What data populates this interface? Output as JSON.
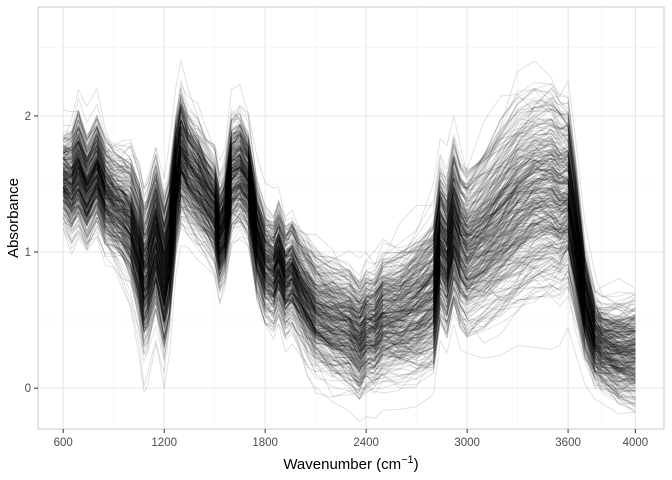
{
  "chart_data": {
    "type": "line",
    "title": "",
    "xlabel": "Wavenumber (cm",
    "xlabel_superscript": "−1",
    "xlabel_suffix": ")",
    "ylabel": "Absorbance",
    "xlim": [
      450,
      4170
    ],
    "ylim": [
      -0.3,
      2.8
    ],
    "x_ticks": [
      600,
      1200,
      1800,
      2400,
      3000,
      3600,
      4000
    ],
    "x_tick_labels": [
      "600",
      "1200",
      "1800",
      "2400",
      "3000",
      "3600",
      "4000"
    ],
    "x_minor_ticks": [
      900,
      1500,
      2100,
      2700,
      3300,
      3800
    ],
    "y_ticks": [
      0,
      1,
      2
    ],
    "y_tick_labels": [
      "0",
      "1",
      "2"
    ],
    "y_minor_ticks": [
      0.5,
      1.5,
      2.5
    ],
    "grid": true,
    "legend": "none",
    "line_color": "#000000",
    "line_opacity": 0.12,
    "n_series": 400,
    "x": [
      600,
      650,
      690,
      740,
      800,
      850,
      900,
      950,
      1000,
      1050,
      1080,
      1100,
      1150,
      1200,
      1230,
      1270,
      1300,
      1340,
      1400,
      1450,
      1500,
      1530,
      1560,
      1600,
      1650,
      1700,
      1750,
      1800,
      1850,
      1880,
      1920,
      1960,
      2000,
      2050,
      2100,
      2200,
      2300,
      2360,
      2400,
      2450,
      2500,
      2600,
      2700,
      2800,
      2840,
      2880,
      2920,
      2960,
      3000,
      3100,
      3200,
      3300,
      3400,
      3500,
      3550,
      3600,
      3640,
      3700,
      3760,
      3800,
      3900,
      4000
    ],
    "mean_spectrum": [
      1.55,
      1.5,
      1.6,
      1.45,
      1.6,
      1.42,
      1.35,
      1.3,
      1.22,
      1.0,
      0.8,
      0.85,
      1.1,
      0.8,
      1.0,
      1.5,
      1.7,
      1.6,
      1.5,
      1.4,
      1.3,
      1.1,
      1.2,
      1.55,
      1.6,
      1.5,
      1.1,
      0.9,
      0.85,
      0.95,
      0.8,
      0.85,
      0.75,
      0.65,
      0.55,
      0.48,
      0.43,
      0.35,
      0.42,
      0.42,
      0.5,
      0.52,
      0.58,
      0.68,
      1.05,
      0.95,
      1.2,
      1.05,
      0.98,
      1.08,
      1.2,
      1.32,
      1.4,
      1.42,
      1.38,
      1.4,
      1.1,
      0.6,
      0.35,
      0.3,
      0.25,
      0.25
    ],
    "spread": [
      0.15,
      0.2,
      0.22,
      0.2,
      0.2,
      0.2,
      0.2,
      0.22,
      0.25,
      0.28,
      0.3,
      0.3,
      0.3,
      0.3,
      0.28,
      0.25,
      0.25,
      0.22,
      0.22,
      0.2,
      0.2,
      0.2,
      0.2,
      0.22,
      0.22,
      0.2,
      0.2,
      0.2,
      0.2,
      0.2,
      0.2,
      0.2,
      0.2,
      0.22,
      0.22,
      0.22,
      0.22,
      0.22,
      0.22,
      0.22,
      0.24,
      0.25,
      0.28,
      0.3,
      0.3,
      0.3,
      0.32,
      0.32,
      0.32,
      0.35,
      0.38,
      0.4,
      0.4,
      0.4,
      0.38,
      0.35,
      0.3,
      0.2,
      0.15,
      0.15,
      0.18,
      0.2
    ]
  }
}
